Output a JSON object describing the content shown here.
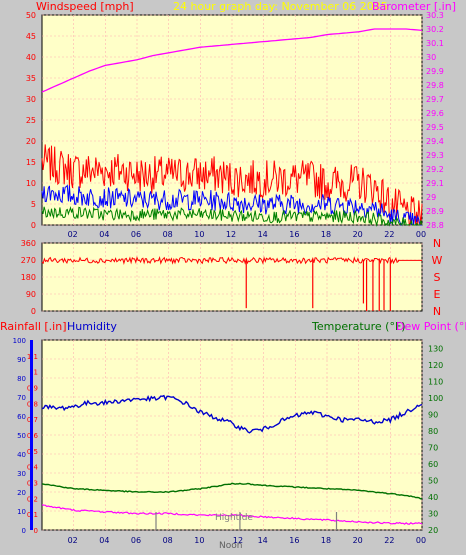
{
  "header": {
    "windspeed_label": "Windspeed [mph]",
    "title": "24 hour graph day:  November 06 2025",
    "barometer_label": "Barometer [.in]"
  },
  "bottom": {
    "rainfall_label": "Rainfall [.in]",
    "humidity_label": "Humidity",
    "temperature_label": "Temperature (°F)",
    "dewpoint_label": "Dew Point (°F)",
    "hightide_label": "Hightide",
    "noon_label": "Noon"
  },
  "colors": {
    "background": "#c8c8c8",
    "plot_bg": "#ffffc8",
    "wind_gust": "#ff0000",
    "wind_avg": "#0000ff",
    "wind_low": "#008000",
    "barometer": "#ff00ff",
    "direction": "#ff0000",
    "humidity": "#0000cd",
    "temperature": "#007000",
    "dewpoint": "#ff00ff",
    "title": "#ffff00"
  },
  "chart_data": [
    {
      "type": "line",
      "name": "wind-barometer",
      "x_ticks": [
        "02",
        "04",
        "06",
        "08",
        "10",
        "12",
        "14",
        "16",
        "18",
        "20",
        "22",
        "00"
      ],
      "wind_axis": {
        "ticks": [
          0,
          5,
          10,
          15,
          20,
          25,
          30,
          35,
          40,
          45,
          50
        ],
        "ylim": [
          0,
          50
        ]
      },
      "barometer_axis": {
        "ticks": [
          "28.8",
          "28.9",
          "29",
          "29.1",
          "29.2",
          "29.3",
          "29.4",
          "29.5",
          "29.6",
          "29.7",
          "29.8",
          "29.9",
          "30",
          "30.1",
          "30.2",
          "30.3"
        ],
        "ylim": [
          28.8,
          30.3
        ]
      },
      "series": [
        {
          "kind": "gust",
          "x": [
            0,
            1,
            2,
            3,
            4,
            5,
            6,
            7,
            8,
            9,
            10,
            11,
            12,
            13,
            14,
            15,
            16,
            17,
            18,
            19,
            20,
            21,
            22,
            22.5,
            23,
            23.5,
            24
          ],
          "values": [
            15,
            14,
            13,
            13,
            13,
            13,
            12,
            12,
            12,
            12,
            12,
            12,
            11,
            11,
            11,
            11,
            11,
            11,
            10,
            10,
            10,
            9,
            5,
            4,
            3,
            2,
            1
          ]
        },
        {
          "kind": "avg",
          "x": [
            0,
            2,
            4,
            6,
            8,
            10,
            12,
            14,
            16,
            18,
            20,
            21,
            22,
            23,
            24
          ],
          "values": [
            8,
            7,
            6.5,
            6,
            6,
            6,
            5.5,
            5,
            5,
            5,
            4.5,
            4,
            2,
            1,
            0
          ]
        },
        {
          "kind": "low",
          "x": [
            0,
            2,
            4,
            6,
            8,
            10,
            12,
            14,
            16,
            18,
            20,
            21,
            22,
            24
          ],
          "values": [
            3,
            3,
            2.5,
            2.5,
            2.5,
            2.5,
            2.2,
            2,
            2,
            2,
            2,
            1.5,
            0.5,
            0
          ]
        },
        {
          "kind": "barometer",
          "x": [
            0,
            1,
            2,
            3,
            4,
            5,
            6,
            7,
            8,
            9,
            10,
            11,
            12,
            13,
            14,
            15,
            16,
            17,
            18,
            19,
            20,
            21,
            22,
            23,
            24
          ],
          "values": [
            29.75,
            29.8,
            29.85,
            29.9,
            29.94,
            29.96,
            29.98,
            30.01,
            30.03,
            30.05,
            30.07,
            30.08,
            30.09,
            30.1,
            30.11,
            30.12,
            30.13,
            30.14,
            30.16,
            30.17,
            30.18,
            30.2,
            30.2,
            30.2,
            30.19
          ]
        }
      ]
    },
    {
      "type": "line",
      "name": "wind-direction",
      "y_ticks": [
        0,
        90,
        180,
        270,
        360
      ],
      "directions": [
        "N",
        "W",
        "S",
        "E",
        "N"
      ],
      "ylim": [
        0,
        360
      ],
      "series": [
        {
          "kind": "direction",
          "x": [
            0,
            24
          ],
          "values": [
            268,
            268
          ]
        }
      ],
      "dips": [
        {
          "x": 12.9,
          "value": 15
        },
        {
          "x": 17.1,
          "value": 15
        },
        {
          "x": 20.3,
          "value": 40
        },
        {
          "x": 20.5,
          "value": 0
        },
        {
          "x": 20.9,
          "value": 0
        },
        {
          "x": 21.3,
          "value": 0
        },
        {
          "x": 21.6,
          "value": 5
        },
        {
          "x": 22.0,
          "value": 0
        }
      ]
    },
    {
      "type": "line",
      "name": "humidity-temperature",
      "x_ticks": [
        "02",
        "04",
        "06",
        "08",
        "10",
        "12",
        "14",
        "16",
        "18",
        "20",
        "22",
        "00"
      ],
      "rain_axis": {
        "ticks": [
          "0",
          "0.1",
          "0.2",
          "0.3",
          "0.4",
          "0.5",
          "0.6",
          "0.7",
          "0.8",
          "0.9",
          "1",
          "1.1"
        ],
        "ylim": [
          0,
          1.2
        ]
      },
      "humidity_axis": {
        "ticks": [
          0,
          10,
          20,
          30,
          40,
          50,
          60,
          70,
          80,
          90,
          100
        ],
        "ylim": [
          0,
          100
        ]
      },
      "temp_axis": {
        "ticks": [
          20,
          30,
          40,
          50,
          60,
          70,
          80,
          90,
          100,
          110,
          120,
          130
        ],
        "ylim": [
          20,
          135
        ]
      },
      "series": [
        {
          "kind": "humidity",
          "x": [
            0,
            1,
            2,
            3,
            4,
            5,
            6,
            7,
            8,
            9,
            10,
            11,
            12,
            13,
            14,
            15,
            16,
            17,
            18,
            19,
            20,
            21,
            22,
            23,
            24
          ],
          "values": [
            65,
            64,
            65,
            67,
            67,
            68,
            69,
            69,
            70,
            67,
            62,
            59,
            56,
            52,
            53,
            57,
            60,
            62,
            60,
            58,
            58,
            57,
            58,
            62,
            67
          ]
        },
        {
          "kind": "temperature",
          "x": [
            0,
            2,
            4,
            6,
            8,
            10,
            12,
            13,
            14,
            16,
            18,
            20,
            22,
            23,
            24
          ],
          "values": [
            48,
            45,
            44,
            43,
            43,
            45,
            48,
            48,
            47,
            46,
            45,
            44,
            42,
            41,
            39
          ]
        },
        {
          "kind": "dewpoint",
          "x": [
            0,
            2,
            4,
            6,
            8,
            10,
            12,
            14,
            16,
            18,
            20,
            22,
            24
          ],
          "values": [
            35,
            32,
            31,
            30,
            30,
            29,
            29,
            28,
            27,
            26,
            25,
            24,
            24
          ]
        }
      ],
      "markers": [
        {
          "x": 7.2,
          "label": "hightide"
        },
        {
          "x": 12.5,
          "label": "noon"
        },
        {
          "x": 18.6,
          "label": "hightide"
        }
      ]
    }
  ]
}
